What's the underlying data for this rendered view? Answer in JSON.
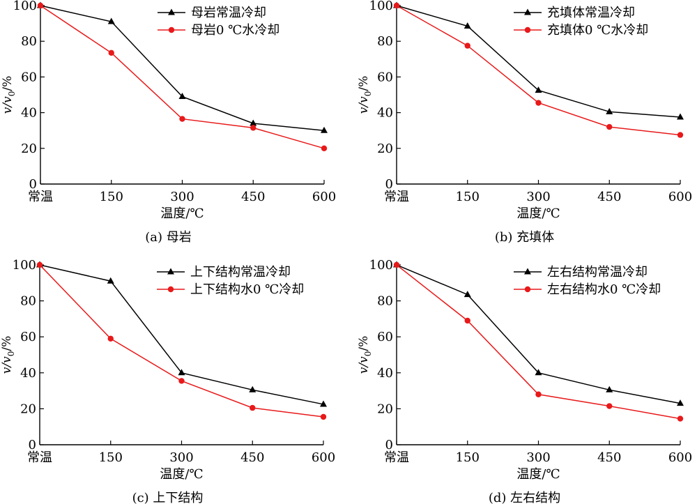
{
  "colors": {
    "series_1": "#000000",
    "series_2": "#e8191a"
  },
  "chart_data": [
    {
      "type": "line",
      "caption": "(a) 母岩",
      "xlabel": "温度/℃",
      "ylabel_parts": [
        "v/v",
        "0",
        "/%"
      ],
      "categories": [
        "常温",
        "150",
        "300",
        "450",
        "600"
      ],
      "ylim": [
        0,
        100
      ],
      "yticks": [
        0,
        20,
        40,
        60,
        80,
        100
      ],
      "grid": false,
      "legend": "top-right",
      "series": [
        {
          "name": "母岩常温冷却",
          "marker": "triangle",
          "values": [
            100,
            91,
            49,
            34,
            30
          ]
        },
        {
          "name": "母岩0 ℃水冷却",
          "marker": "circle",
          "values": [
            100,
            73.5,
            36.5,
            31.5,
            20
          ]
        }
      ]
    },
    {
      "type": "line",
      "caption": "(b) 充填体",
      "xlabel": "温度/℃",
      "ylabel_parts": [
        "v/v",
        "0",
        "/%"
      ],
      "categories": [
        "常温",
        "150",
        "300",
        "450",
        "600"
      ],
      "ylim": [
        0,
        100
      ],
      "yticks": [
        0,
        20,
        40,
        60,
        80,
        100
      ],
      "grid": false,
      "legend": "top-right",
      "series": [
        {
          "name": "充填体常温冷却",
          "marker": "triangle",
          "values": [
            100,
            88.5,
            52.5,
            40.5,
            37.5
          ]
        },
        {
          "name": "充填体0 ℃水冷却",
          "marker": "circle",
          "values": [
            100,
            77.5,
            45.5,
            32,
            27.5
          ]
        }
      ]
    },
    {
      "type": "line",
      "caption": "(c) 上下结构",
      "xlabel": "温度/℃",
      "ylabel_parts": [
        "v/v",
        "0",
        "/%"
      ],
      "categories": [
        "常温",
        "150",
        "300",
        "450",
        "600"
      ],
      "ylim": [
        0,
        100
      ],
      "yticks": [
        0,
        20,
        40,
        60,
        80,
        100
      ],
      "grid": false,
      "legend": "top-right",
      "series": [
        {
          "name": "上下结构常温冷却",
          "marker": "triangle",
          "values": [
            100,
            91,
            40,
            30.5,
            22.5
          ]
        },
        {
          "name": "上下结构水0 ℃冷却",
          "marker": "circle",
          "values": [
            100,
            59,
            35.5,
            20.5,
            15.5
          ]
        }
      ]
    },
    {
      "type": "line",
      "caption": "(d) 左右结构",
      "xlabel": "温度/℃",
      "ylabel_parts": [
        "v/v",
        "0",
        "/%"
      ],
      "categories": [
        "常温",
        "150",
        "300",
        "450",
        "600"
      ],
      "ylim": [
        0,
        100
      ],
      "yticks": [
        0,
        20,
        40,
        60,
        80,
        100
      ],
      "grid": false,
      "legend": "top-right",
      "series": [
        {
          "name": "左右结构常温冷却",
          "marker": "triangle",
          "values": [
            100,
            83.5,
            40,
            30.5,
            23
          ]
        },
        {
          "name": "左右结构水0 ℃冷却",
          "marker": "circle",
          "values": [
            100,
            69,
            28,
            21.5,
            14.5
          ]
        }
      ]
    }
  ]
}
